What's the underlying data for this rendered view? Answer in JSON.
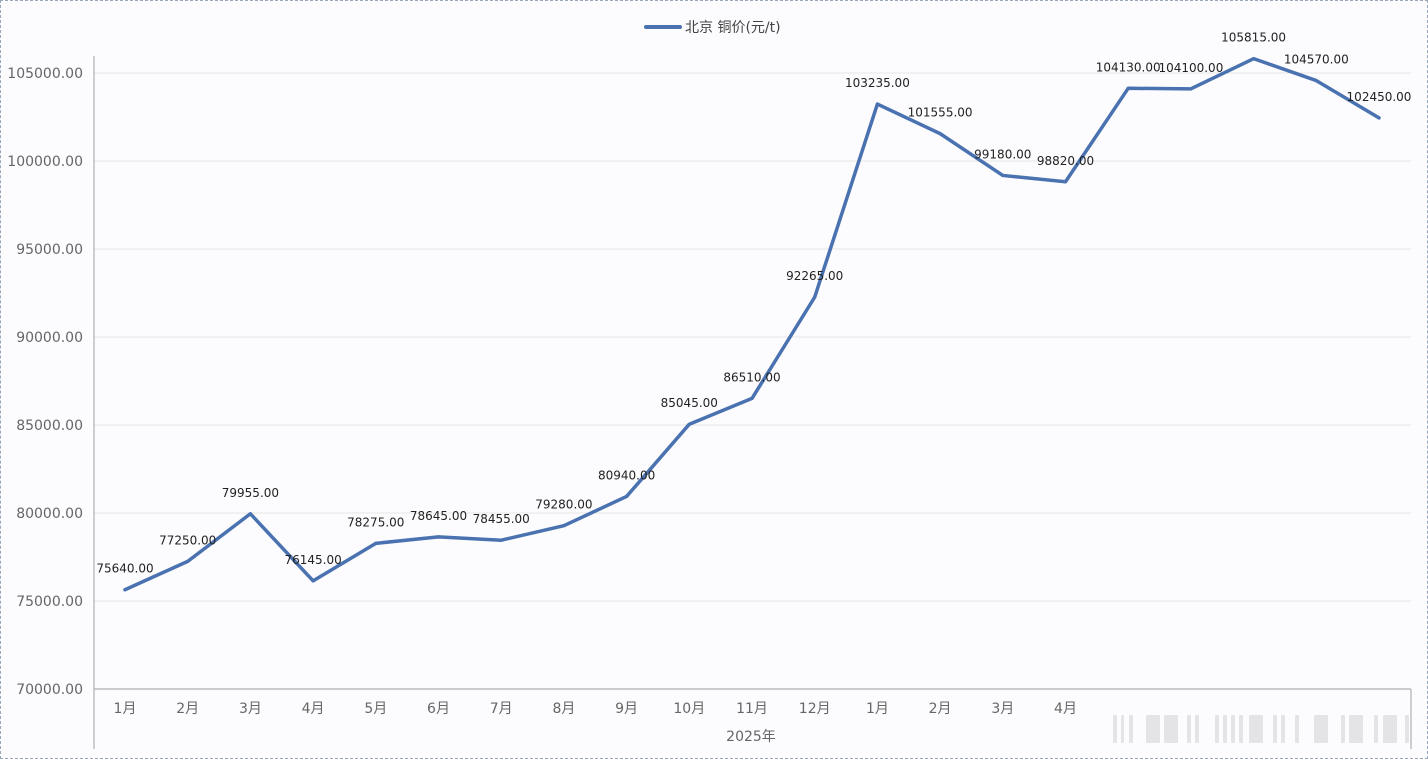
{
  "chart_data": {
    "type": "line",
    "legend": "北京 铜价(元/t)",
    "legend_position": "top-center",
    "categories": [
      "1月",
      "2月",
      "3月",
      "4月",
      "5月",
      "6月",
      "7月",
      "8月",
      "9月",
      "10月",
      "11月",
      "12月",
      "1月",
      "2月",
      "3月",
      "4月",
      "",
      "",
      "",
      "",
      ""
    ],
    "group_labels": [
      {
        "label": "2025年",
        "start": 12,
        "end": 20
      }
    ],
    "series": [
      {
        "name": "北京 铜价(元/t)",
        "color": "#4a72b0",
        "values": [
          75640,
          77250,
          79955,
          76145,
          78275,
          78645,
          78455,
          79280,
          80940,
          85045,
          86510,
          92265,
          103235,
          101555,
          99180,
          98820,
          104130,
          104100,
          105815,
          104570,
          102450
        ],
        "labels": [
          "75640.00",
          "77250.00",
          "79955.00",
          "76145.00",
          "78275.00",
          "78645.00",
          "78455.00",
          "79280.00",
          "80940.00",
          "85045.00",
          "86510.00",
          "92265.00",
          "103235.00",
          "101555.00",
          "99180.00",
          "98820.00",
          "104130.00",
          "104100.00",
          "105815.00",
          "104570.00",
          "102450.00"
        ]
      }
    ],
    "ylim": [
      70000,
      105000
    ],
    "yticks": [
      "70000.00",
      "75000.00",
      "80000.00",
      "85000.00",
      "90000.00",
      "95000.00",
      "100000.00",
      "105000.00"
    ],
    "ytick_values": [
      70000,
      75000,
      80000,
      85000,
      90000,
      95000,
      100000,
      105000
    ],
    "grid": true
  }
}
